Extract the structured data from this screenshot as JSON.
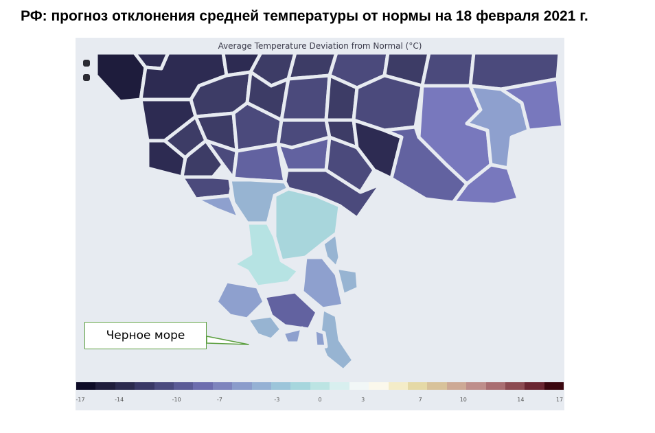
{
  "header": {
    "title": "РФ: прогноз отклонения средней температуры от нормы на 18 февраля 2021 г."
  },
  "map": {
    "title": "Average Temperature Deviation from Normal (°C)",
    "callout_label": "Черное море",
    "zoom_controls": [
      "zoom-in",
      "zoom-out"
    ]
  },
  "legend": {
    "tick_labels": [
      "-17",
      "-14",
      "-10",
      "-7",
      "-3",
      "0",
      "3",
      "7",
      "10",
      "14",
      "17"
    ],
    "min": -17,
    "max": 17,
    "colors": [
      "#0d0b26",
      "#1f1d3b",
      "#2b2a4e",
      "#393866",
      "#4a4a7e",
      "#5b5b96",
      "#6d6dae",
      "#7e84bd",
      "#8b9ccb",
      "#95b1d4",
      "#9cc5da",
      "#a6d6dd",
      "#bce4e3",
      "#d8efef",
      "#f2f7f7",
      "#fbf8ec",
      "#f4ecc8",
      "#e5d9a6",
      "#d8c29a",
      "#cda995",
      "#be8e8b",
      "#a96e72",
      "#8c4b52",
      "#6a2632",
      "#3b0710"
    ]
  },
  "palette": {
    "very_dark": "#1e1c3c",
    "dark": "#2d2b52",
    "medium_dark": "#3d3c66",
    "medium": "#4b4a7c",
    "purple": "#6262a0",
    "lavender": "#7878bd",
    "periwinkle": "#8ea0ce",
    "light_blue": "#97b4d2",
    "pale_cyan": "#a8d6dc",
    "very_pale_cyan": "#b6e3e3",
    "background": "#e7ebf1",
    "border": "#e7ebf1",
    "callout_border": "#5a9e3e"
  }
}
